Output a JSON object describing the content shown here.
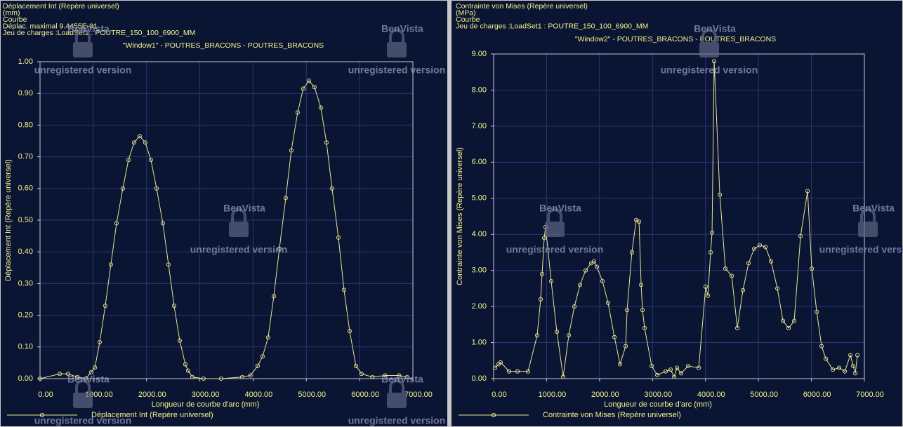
{
  "watermark": {
    "brand": "BenVista",
    "notice": "unregistered version"
  },
  "chart_data": [
    {
      "type": "line",
      "header_lines": [
        "Déplacement Int (Repère universel)",
        "(mm)",
        "Courbe",
        "Déplac. maximal  9.4455E-01",
        "Jeu de charges :LoadSet1 :   POUTRE_150_100_6900_MM"
      ],
      "window_label": "\"Window1\" - POUTRES_BRACONS - POUTRES_BRACONS",
      "xlabel": "Longueur de courbe d'arc (mm)",
      "ylabel": "Déplacement Int (Repère universel)",
      "xlim": [
        0,
        7000
      ],
      "ylim": [
        0,
        1
      ],
      "xticks": [
        {
          "value": 0,
          "label": "0.00"
        },
        {
          "value": 1000,
          "label": "1000.00"
        },
        {
          "value": 2000,
          "label": "2000.00"
        },
        {
          "value": 3000,
          "label": "3000.00"
        },
        {
          "value": 4000,
          "label": "4000.00"
        },
        {
          "value": 5000,
          "label": "5000.00"
        },
        {
          "value": 6000,
          "label": "6000.00"
        },
        {
          "value": 7000,
          "label": "7000.00"
        }
      ],
      "yticks": [
        {
          "value": 0,
          "label": "0.00"
        },
        {
          "value": 0.1,
          "label": "0.10"
        },
        {
          "value": 0.2,
          "label": "0.20"
        },
        {
          "value": 0.3,
          "label": "0.30"
        },
        {
          "value": 0.4,
          "label": "0.40"
        },
        {
          "value": 0.5,
          "label": "0.50"
        },
        {
          "value": 0.6,
          "label": "0.60"
        },
        {
          "value": 0.7,
          "label": "0.70"
        },
        {
          "value": 0.8,
          "label": "0.80"
        },
        {
          "value": 0.9,
          "label": "0.90"
        },
        {
          "value": 1,
          "label": "1.00"
        }
      ],
      "grid": true,
      "legend": "bottom-left",
      "series": [
        {
          "name": "Déplacement Int (Repère universel)",
          "color": "#e8e890",
          "x": [
            0,
            370,
            527,
            700,
            857,
            960,
            1030,
            1120,
            1225,
            1330,
            1436,
            1555,
            1660,
            1766,
            1870,
            1976,
            2082,
            2188,
            2306,
            2412,
            2517,
            2623,
            2728,
            2780,
            2860,
            3070,
            3400,
            3796,
            3950,
            4086,
            4178,
            4283,
            4389,
            4494,
            4613,
            4718,
            4837,
            4942,
            5048,
            5153,
            5272,
            5378,
            5483,
            5602,
            5707,
            5813,
            5931,
            6037,
            6240,
            6480,
            6740,
            6893
          ],
          "values": [
            0,
            0.015,
            0.015,
            0.005,
            0,
            0.02,
            0.035,
            0.115,
            0.23,
            0.36,
            0.49,
            0.6,
            0.69,
            0.745,
            0.765,
            0.745,
            0.69,
            0.6,
            0.49,
            0.36,
            0.23,
            0.12,
            0.045,
            0.025,
            0.005,
            0,
            0,
            0.005,
            0.01,
            0.04,
            0.07,
            0.13,
            0.26,
            0.41,
            0.57,
            0.72,
            0.84,
            0.915,
            0.94,
            0.92,
            0.855,
            0.745,
            0.6,
            0.445,
            0.28,
            0.15,
            0.04,
            0.015,
            0.005,
            0.01,
            0.01,
            0.005
          ]
        }
      ]
    },
    {
      "type": "line",
      "header_lines": [
        "Contrainte von Mises (Repère universel)",
        "(MPa)",
        "Courbe",
        "Jeu de charges :LoadSet1 :   POUTRE_150_100_6900_MM"
      ],
      "window_label": "\"Window2\" - POUTRES_BRACONS - POUTRES_BRACONS",
      "xlabel": "Longueur de courbe d'arc (mm)",
      "ylabel": "Contrainte von Mises (Repère universel)",
      "xlim": [
        0,
        7000
      ],
      "ylim": [
        0,
        9
      ],
      "xticks": [
        {
          "value": 0,
          "label": "0.00"
        },
        {
          "value": 1000,
          "label": "1000.00"
        },
        {
          "value": 2000,
          "label": "2000.00"
        },
        {
          "value": 3000,
          "label": "3000.00"
        },
        {
          "value": 4000,
          "label": "4000.00"
        },
        {
          "value": 5000,
          "label": "5000.00"
        },
        {
          "value": 6000,
          "label": "6000.00"
        },
        {
          "value": 7000,
          "label": "7000.00"
        }
      ],
      "yticks": [
        {
          "value": 0,
          "label": "0.00"
        },
        {
          "value": 1,
          "label": "1.00"
        },
        {
          "value": 2,
          "label": "2.00"
        },
        {
          "value": 3,
          "label": "3.00"
        },
        {
          "value": 4,
          "label": "4.00"
        },
        {
          "value": 5,
          "label": "5.00"
        },
        {
          "value": 6,
          "label": "6.00"
        },
        {
          "value": 7,
          "label": "7.00"
        },
        {
          "value": 8,
          "label": "8.00"
        },
        {
          "value": 9,
          "label": "9.00"
        }
      ],
      "grid": true,
      "legend": "bottom-left",
      "series": [
        {
          "name": "Contrainte von Mises (Repère universel)",
          "color": "#e8e890",
          "x": [
            27,
            93,
            133,
            292,
            451,
            650,
            822,
            888,
            915,
            955,
            981,
            1087,
            1193,
            1313,
            1419,
            1525,
            1631,
            1737,
            1843,
            1896,
            1949,
            2055,
            2161,
            2281,
            2387,
            2493,
            2520,
            2610,
            2692,
            2745,
            2785,
            2811,
            2851,
            2984,
            3090,
            3249,
            3342,
            3408,
            3461,
            3540,
            3673,
            3872,
            4004,
            4044,
            4097,
            4124,
            4164,
            4270,
            4376,
            4495,
            4601,
            4707,
            4813,
            4919,
            5025,
            5132,
            5238,
            5357,
            5463,
            5569,
            5675,
            5795,
            5927,
            6007,
            6100,
            6192,
            6272,
            6405,
            6524,
            6630,
            6736,
            6789,
            6829,
            6869
          ],
          "values": [
            0.3,
            0.4,
            0.45,
            0.2,
            0.2,
            0.2,
            1.2,
            2.2,
            2.9,
            3.9,
            4.2,
            2.7,
            1.3,
            0.05,
            1.2,
            2,
            2.6,
            3,
            3.2,
            3.25,
            3.1,
            2.7,
            2.1,
            1.15,
            0.4,
            0.9,
            1.9,
            3.5,
            4.4,
            4.35,
            2.6,
            1.9,
            1.4,
            0.35,
            0.1,
            0.2,
            0.25,
            0.05,
            0.3,
            0.15,
            0.35,
            0.3,
            2.55,
            2.3,
            3.5,
            4.05,
            8.8,
            5.1,
            3.05,
            2.85,
            1.4,
            2.45,
            3.2,
            3.6,
            3.7,
            3.65,
            3.25,
            2.5,
            1.6,
            1.4,
            1.6,
            3.95,
            5.2,
            3.05,
            1.85,
            0.9,
            0.55,
            0.25,
            0.3,
            0.2,
            0.65,
            0.35,
            0.15,
            0.65
          ]
        }
      ]
    }
  ]
}
